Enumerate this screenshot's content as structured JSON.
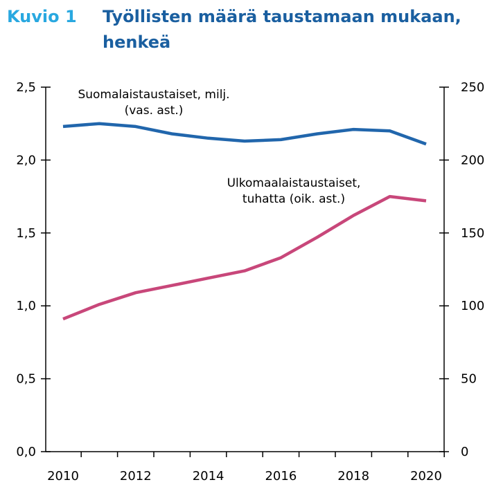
{
  "header": {
    "figure_label": "Kuvio 1",
    "title": "Työllisten määrä taustamaan mukaan, henkeä"
  },
  "colors": {
    "figure_label": "#29a8e0",
    "title": "#1a5fa0",
    "series_native": "#2166ac",
    "series_foreign": "#c8477a",
    "axis": "#000000"
  },
  "chart_data": {
    "type": "line",
    "title": "Työllisten määrä taustamaan mukaan, henkeä",
    "x": [
      2010,
      2011,
      2012,
      2013,
      2014,
      2015,
      2016,
      2017,
      2018,
      2019,
      2020
    ],
    "x_ticks": [
      "2010",
      "2012",
      "2014",
      "2016",
      "2018",
      "2020"
    ],
    "y_left": {
      "ticks": [
        "0,0",
        "0,5",
        "1,0",
        "1,5",
        "2,0",
        "2,5"
      ],
      "ylim": [
        0,
        2.5
      ]
    },
    "y_right": {
      "ticks": [
        "0",
        "50",
        "100",
        "150",
        "200",
        "250"
      ],
      "ylim": [
        0,
        250
      ]
    },
    "grid": false,
    "series": [
      {
        "name": "Suomalaistaustaiset, milj. (vas. ast.)",
        "label_lines": [
          "Suomalaistaustaiset, milj.",
          "(vas. ast.)"
        ],
        "axis": "left",
        "values": [
          2.23,
          2.25,
          2.23,
          2.18,
          2.15,
          2.13,
          2.14,
          2.18,
          2.21,
          2.2,
          2.11
        ]
      },
      {
        "name": "Ulkomaalaistaustaiset, tuhatta (oik. ast.)",
        "label_lines": [
          "Ulkomaalaistaustaiset,",
          "tuhatta (oik. ast.)"
        ],
        "axis": "right",
        "values": [
          91,
          101,
          109,
          114,
          119,
          124,
          133,
          147,
          162,
          175,
          172
        ]
      }
    ]
  }
}
